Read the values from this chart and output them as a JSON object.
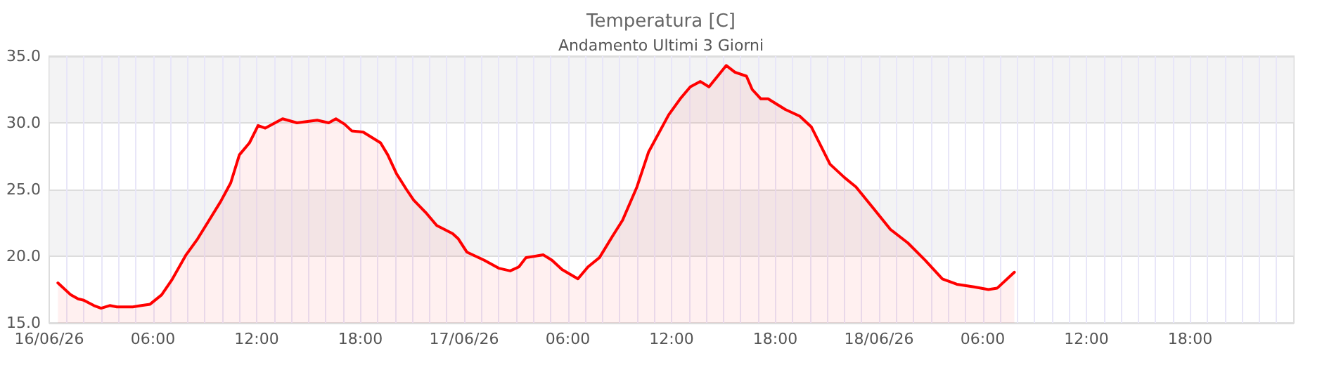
{
  "chart_data": {
    "type": "area",
    "title": "Temperatura [C]",
    "subtitle": "Andamento Ultimi 3 Giorni",
    "x": [
      "--06-16T00:30",
      "--06-16T01:15",
      "--06-16T01:40",
      "--06-16T02:00",
      "--06-16T02:35",
      "--06-16T03:00",
      "--06-16T03:30",
      "--06-16T03:55",
      "--06-16T04:50",
      "--06-16T05:20",
      "--06-16T05:50",
      "--06-16T06:30",
      "--06-16T07:05",
      "--06-16T07:55",
      "--06-16T08:35",
      "--06-16T09:15",
      "--06-16T09:55",
      "--06-16T10:30",
      "--06-16T11:00",
      "--06-16T11:35",
      "--06-16T12:05",
      "--06-16T12:30",
      "--06-16T13:30",
      "--06-16T14:20",
      "--06-16T15:30",
      "--06-16T16:10",
      "--06-16T16:35",
      "--06-16T17:05",
      "--06-16T17:30",
      "--06-16T18:10",
      "--06-16T19:10",
      "--06-16T19:35",
      "--06-16T20:05",
      "--06-16T20:40",
      "--06-16T21:05",
      "--06-16T21:50",
      "--06-16T22:25",
      "--06-16T23:20",
      "--06-16T23:40",
      "--06-17T00:10",
      "--06-17T01:10",
      "--06-17T02:00",
      "--06-17T02:40",
      "--06-17T03:10",
      "--06-17T03:35",
      "--06-17T04:35",
      "--06-17T05:05",
      "--06-17T05:40",
      "--06-17T06:35",
      "--06-17T07:10",
      "--06-17T07:50",
      "--06-17T08:35",
      "--06-17T09:10",
      "--06-17T10:00",
      "--06-17T10:40",
      "--06-17T11:50",
      "--06-17T12:30",
      "--06-17T13:05",
      "--06-17T13:40",
      "--06-17T14:10",
      "--06-17T15:10",
      "--06-17T15:40",
      "--06-17T16:20",
      "--06-17T16:40",
      "--06-17T17:10",
      "--06-17T17:35",
      "--06-17T18:35",
      "--06-17T19:25",
      "--06-17T20:05",
      "--06-17T21:10",
      "--06-17T22:00",
      "--06-17T22:40",
      "--06-17T23:40",
      "--06-18T00:40",
      "--06-18T01:40",
      "--06-18T02:40",
      "--06-18T03:40",
      "--06-18T04:30",
      "--06-18T05:30",
      "--06-18T06:20",
      "--06-18T06:50",
      "--06-18T07:50"
    ],
    "series": [
      {
        "color": "#ff0000",
        "values": [
          18.0,
          17.1,
          16.8,
          16.7,
          16.3,
          16.1,
          16.3,
          16.2,
          16.2,
          16.3,
          16.4,
          17.1,
          18.2,
          20.1,
          21.3,
          22.7,
          24.1,
          25.5,
          27.6,
          28.5,
          29.8,
          29.6,
          30.3,
          30.0,
          30.2,
          30.0,
          30.3,
          29.9,
          29.4,
          29.3,
          28.5,
          27.6,
          26.2,
          25.0,
          24.2,
          23.2,
          22.3,
          21.7,
          21.3,
          20.3,
          19.7,
          19.1,
          18.9,
          19.2,
          19.9,
          20.1,
          19.7,
          19.0,
          18.3,
          19.2,
          19.9,
          21.5,
          22.7,
          25.2,
          27.8,
          30.6,
          31.8,
          32.7,
          33.1,
          32.7,
          34.3,
          33.8,
          33.5,
          32.5,
          31.8,
          31.8,
          31.0,
          30.5,
          29.7,
          26.9,
          25.9,
          25.2,
          23.6,
          22.0,
          21.0,
          19.7,
          18.3,
          17.9,
          17.7,
          17.5,
          17.6,
          18.8
        ]
      }
    ],
    "xlim": [
      "--06-16T00:00",
      "--06-19T00:00"
    ],
    "xticks": [
      {
        "value": "--06-16T00:00",
        "label": "16/06/26"
      },
      {
        "value": "--06-16T06:00",
        "label": "06:00"
      },
      {
        "value": "--06-16T12:00",
        "label": "12:00"
      },
      {
        "value": "--06-16T18:00",
        "label": "18:00"
      },
      {
        "value": "--06-17T00:00",
        "label": "17/06/26"
      },
      {
        "value": "--06-17T06:00",
        "label": "06:00"
      },
      {
        "value": "--06-17T12:00",
        "label": "12:00"
      },
      {
        "value": "--06-17T18:00",
        "label": "18:00"
      },
      {
        "value": "--06-18T00:00",
        "label": "18/06/26"
      },
      {
        "value": "--06-18T06:00",
        "label": "06:00"
      },
      {
        "value": "--06-18T12:00",
        "label": "12:00"
      },
      {
        "value": "--06-18T18:00",
        "label": "18:00"
      }
    ],
    "ylim": [
      15,
      35
    ],
    "yticks": [
      {
        "value": 15,
        "label": "15.0"
      },
      {
        "value": 20,
        "label": "20.0"
      },
      {
        "value": 25,
        "label": "25.0"
      },
      {
        "value": 30,
        "label": "30.0"
      },
      {
        "value": 35,
        "label": "35.0"
      }
    ],
    "grid": true,
    "marker": "none",
    "line_style": "solid"
  }
}
